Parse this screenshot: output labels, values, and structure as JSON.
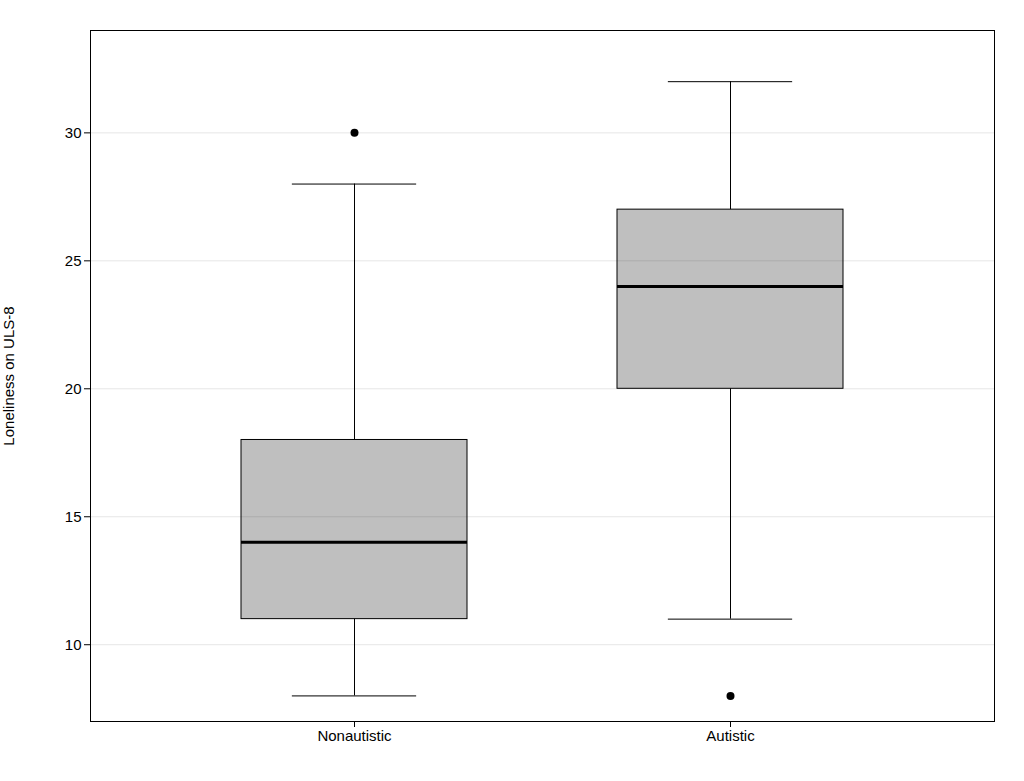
{
  "chart_data": {
    "type": "box",
    "categories": [
      "Nonautistic",
      "Autistic"
    ],
    "q1": [
      11.0,
      20.0
    ],
    "median": [
      14.0,
      24.0
    ],
    "q3": [
      18.0,
      27.0
    ],
    "whisker_low": [
      8.0,
      11.0
    ],
    "whisker_high": [
      28.0,
      32.0
    ],
    "outliers": [
      [
        30.0
      ],
      [
        8.0
      ]
    ],
    "ylabel": "Loneliness on ULS-8",
    "ylim": [
      7.0,
      34.0
    ],
    "yticks": [
      10,
      15,
      20,
      25,
      30
    ],
    "grid": true
  }
}
